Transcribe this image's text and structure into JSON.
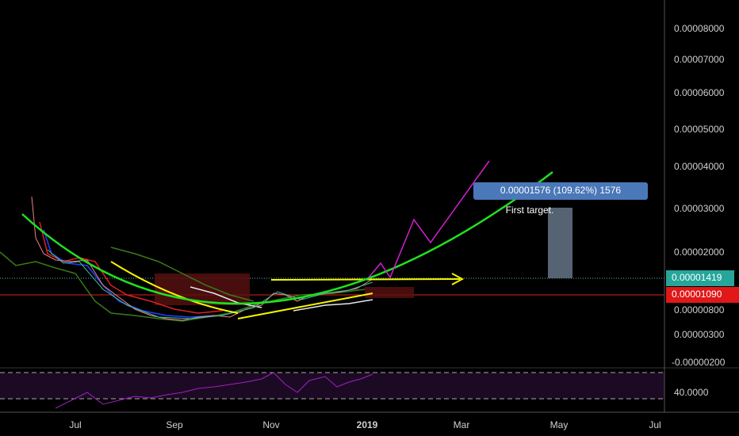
{
  "price_axis": {
    "labels": [
      "0.00008000",
      "0.00007000",
      "0.00006000",
      "0.00005000",
      "0.00004000",
      "0.00003000",
      "0.00002000",
      "0.00000800",
      "0.00000300",
      "-0.00000200"
    ]
  },
  "price_tags": {
    "current": "0.00001419",
    "line": "0.00001090"
  },
  "rsi_axis": {
    "label": "40.0000"
  },
  "time_axis": {
    "labels": [
      "Jul",
      "Sep",
      "Nov",
      "2019",
      "Mar",
      "May",
      "Jul"
    ]
  },
  "annotations": {
    "measure": "0.00001576 (109.62%) 1576",
    "note": "First target."
  }
}
